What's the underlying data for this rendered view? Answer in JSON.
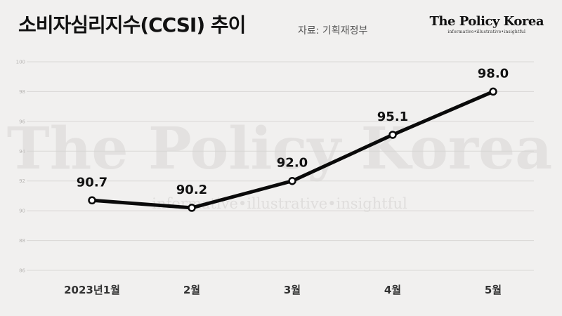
{
  "header": {
    "title": "소비자심리지수(CCSI) 추이",
    "source": "자료: 기획재정부"
  },
  "brand": {
    "name": "The Policy Korea",
    "tagline": "informative•illustrative•insightful"
  },
  "watermark": {
    "main": "The Policy Korea",
    "sub": "informative•illustrative•insightful"
  },
  "chart_data": {
    "type": "line",
    "categories": [
      "2023년1월",
      "2월",
      "3월",
      "4월",
      "5월"
    ],
    "values": [
      90.7,
      90.2,
      92.0,
      95.1,
      98.0
    ],
    "data_labels": [
      "90.7",
      "90.2",
      "92.0",
      "95.1",
      "98.0"
    ],
    "y_ticks": [
      86,
      88,
      90,
      92,
      94,
      96,
      98,
      100
    ],
    "ylim": [
      86,
      100
    ],
    "grid": true,
    "legend": "none",
    "line_color": "#0a0a0a",
    "marker_fill": "#ffffff"
  }
}
